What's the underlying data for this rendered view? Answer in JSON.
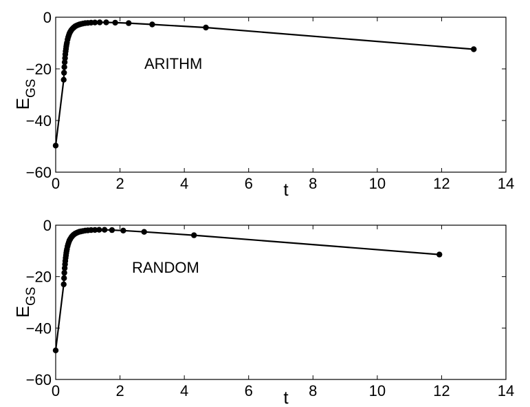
{
  "chart_data": [
    {
      "type": "line",
      "annotation": "ARITHM",
      "title": "",
      "xlabel": "t",
      "ylabel": "E",
      "ylabel_subscript": "GS",
      "xlim": [
        0,
        14
      ],
      "ylim": [
        -60,
        0
      ],
      "xticks": [
        0,
        2,
        4,
        6,
        8,
        10,
        12,
        14
      ],
      "yticks": [
        -60,
        -40,
        -20,
        0
      ],
      "xtick_labels": [
        "0",
        "2",
        "4",
        "6",
        "8",
        "10",
        "12",
        "14"
      ],
      "ytick_labels": [
        "−60",
        "−40",
        "−20",
        "0"
      ],
      "grid": false,
      "marker": "filled-circle",
      "color": "#000000",
      "x": [
        0.0,
        0.25,
        0.26,
        0.27,
        0.28,
        0.29,
        0.3,
        0.31,
        0.32,
        0.33,
        0.34,
        0.35,
        0.37,
        0.39,
        0.41,
        0.43,
        0.45,
        0.48,
        0.51,
        0.54,
        0.57,
        0.61,
        0.65,
        0.69,
        0.74,
        0.79,
        0.85,
        0.92,
        1.0,
        1.1,
        1.22,
        1.37,
        1.57,
        1.85,
        2.27,
        3.0,
        4.67,
        13.0
      ],
      "y": [
        -49.7,
        -24.2,
        -21.5,
        -19.3,
        -17.4,
        -15.8,
        -14.4,
        -13.2,
        -12.2,
        -11.3,
        -10.5,
        -9.8,
        -8.6,
        -7.7,
        -6.9,
        -6.2,
        -5.7,
        -5.1,
        -4.6,
        -4.2,
        -3.9,
        -3.5,
        -3.25,
        -3.0,
        -2.8,
        -2.6,
        -2.45,
        -2.3,
        -2.2,
        -2.1,
        -2.05,
        -2.0,
        -2.0,
        -2.1,
        -2.3,
        -2.8,
        -4.0,
        -12.4
      ]
    },
    {
      "type": "line",
      "annotation": "RANDOM",
      "title": "",
      "xlabel": "t",
      "ylabel": "E",
      "ylabel_subscript": "GS",
      "xlim": [
        0,
        14
      ],
      "ylim": [
        -60,
        0
      ],
      "xticks": [
        0,
        2,
        4,
        6,
        8,
        10,
        12,
        14
      ],
      "yticks": [
        -60,
        -40,
        -20,
        0
      ],
      "xtick_labels": [
        "0",
        "2",
        "4",
        "6",
        "8",
        "10",
        "12",
        "14"
      ],
      "ytick_labels": [
        "−60",
        "−40",
        "−20",
        "0"
      ],
      "grid": false,
      "marker": "filled-circle",
      "color": "#000000",
      "x": [
        0.0,
        0.25,
        0.26,
        0.27,
        0.28,
        0.29,
        0.3,
        0.31,
        0.32,
        0.33,
        0.34,
        0.35,
        0.37,
        0.39,
        0.41,
        0.43,
        0.45,
        0.48,
        0.51,
        0.54,
        0.57,
        0.61,
        0.65,
        0.69,
        0.74,
        0.79,
        0.85,
        0.92,
        1.0,
        1.1,
        1.22,
        1.35,
        1.52,
        1.75,
        2.1,
        2.75,
        4.3,
        11.93
      ],
      "y": [
        -48.7,
        -23.0,
        -20.6,
        -18.5,
        -16.7,
        -15.2,
        -13.9,
        -12.7,
        -11.7,
        -10.8,
        -10.0,
        -9.3,
        -8.2,
        -7.3,
        -6.5,
        -5.9,
        -5.4,
        -4.8,
        -4.3,
        -3.9,
        -3.6,
        -3.25,
        -3.0,
        -2.75,
        -2.55,
        -2.4,
        -2.25,
        -2.1,
        -2.0,
        -1.9,
        -1.85,
        -1.8,
        -1.8,
        -1.9,
        -2.1,
        -2.6,
        -3.9,
        -11.4
      ]
    }
  ]
}
